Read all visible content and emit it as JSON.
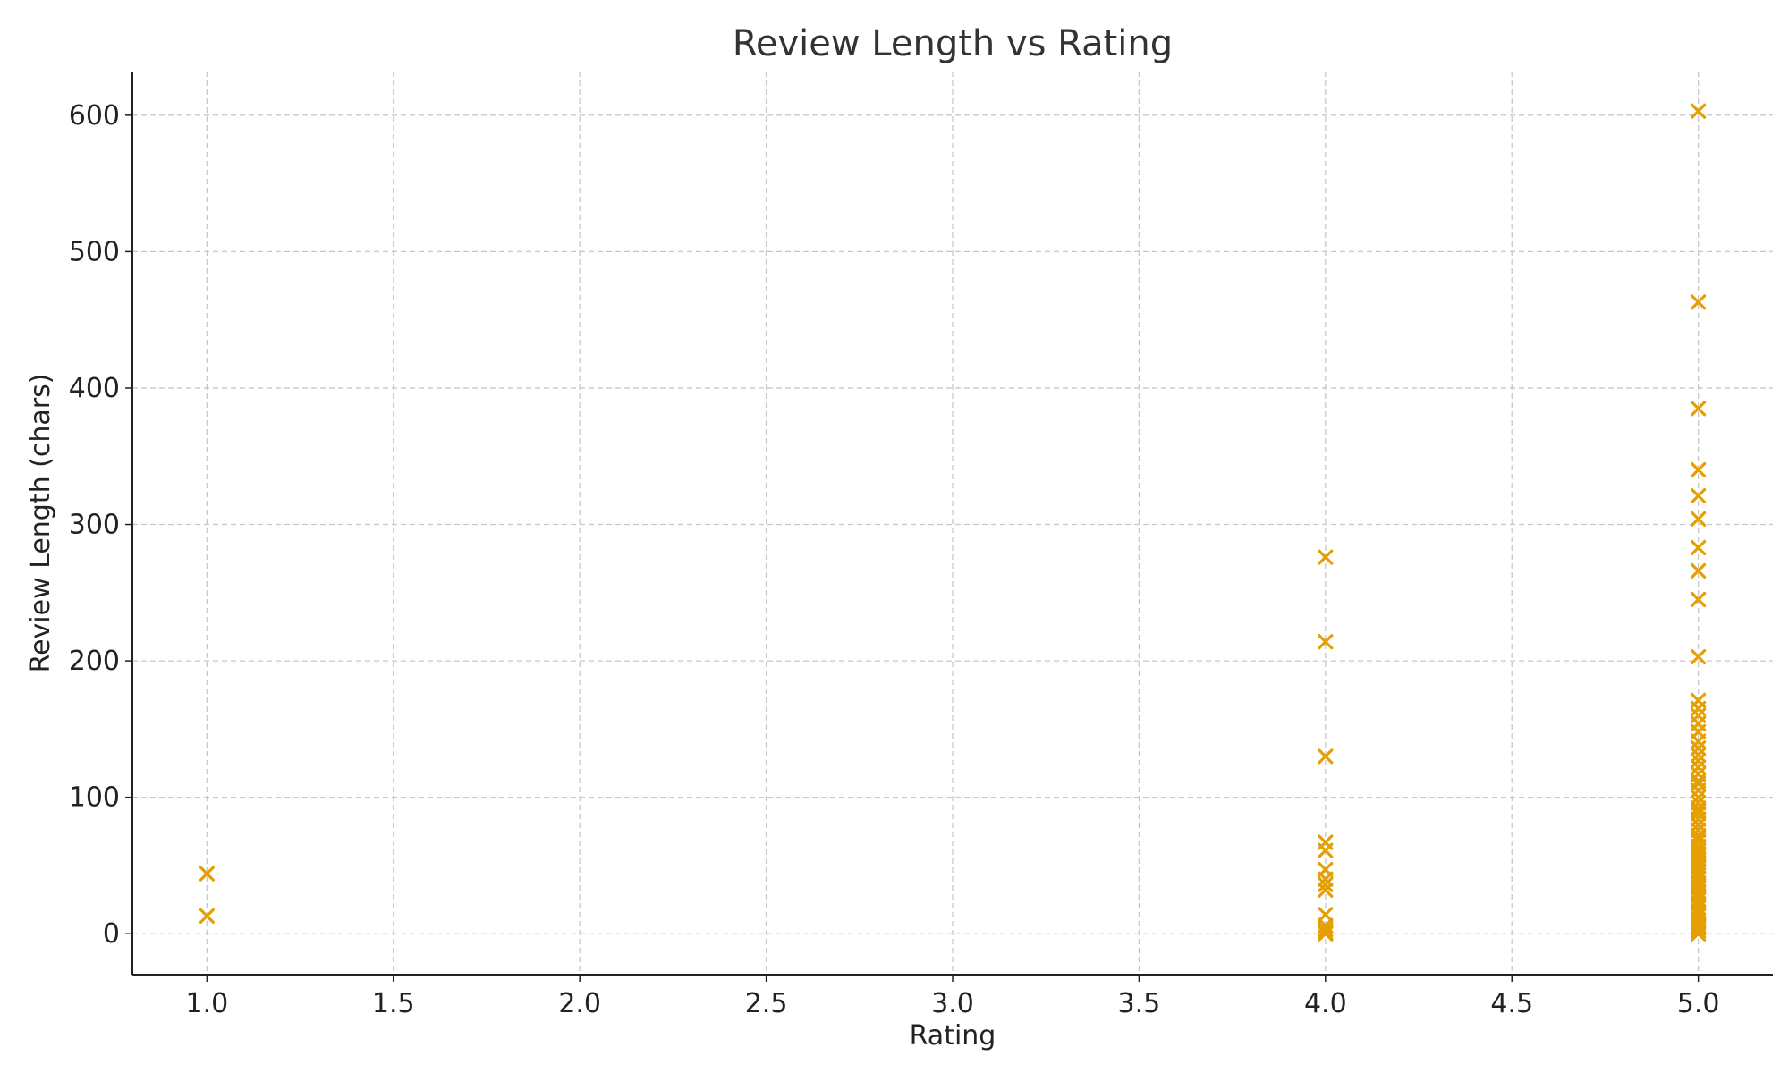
{
  "chart_data": {
    "type": "scatter",
    "title": "Review Length vs Rating",
    "xlabel": "Rating",
    "ylabel": "Review Length (chars)",
    "xlim": [
      0.8,
      5.2
    ],
    "ylim": [
      -30,
      632
    ],
    "xticks": [
      1.0,
      1.5,
      2.0,
      2.5,
      3.0,
      3.5,
      4.0,
      4.5,
      5.0
    ],
    "xtick_labels": [
      "1.0",
      "1.5",
      "2.0",
      "2.5",
      "3.0",
      "3.5",
      "4.0",
      "4.5",
      "5.0"
    ],
    "yticks": [
      0,
      100,
      200,
      300,
      400,
      500,
      600
    ],
    "ytick_labels": [
      "0",
      "100",
      "200",
      "300",
      "400",
      "500",
      "600"
    ],
    "grid": true,
    "marker": "x",
    "color": "#E69F00",
    "series": [
      {
        "x": [
          1,
          1,
          4,
          4,
          4,
          4,
          4,
          4,
          4,
          4,
          4,
          4,
          4,
          4,
          4,
          4,
          5,
          5,
          5,
          5,
          5,
          5,
          5,
          5,
          5,
          5,
          5,
          5,
          5,
          5,
          5,
          5,
          5,
          5,
          5,
          5,
          5,
          5,
          5,
          5,
          5,
          5,
          5,
          5,
          5,
          5,
          5,
          5,
          5,
          5,
          5,
          5,
          5,
          5,
          5,
          5,
          5,
          5,
          5,
          5,
          5,
          5,
          5,
          5,
          5,
          5,
          5,
          5,
          5,
          5,
          5,
          5,
          5,
          5,
          5,
          5,
          5,
          5,
          5,
          5,
          5,
          5,
          5,
          5
        ],
        "y": [
          44,
          13,
          276,
          214,
          130,
          67,
          61,
          47,
          40,
          36,
          32,
          14,
          6,
          3,
          1,
          0,
          603,
          463,
          385,
          340,
          321,
          304,
          283,
          266,
          245,
          203,
          171,
          165,
          160,
          154,
          148,
          141,
          136,
          131,
          127,
          122,
          117,
          112,
          105,
          100,
          96,
          92,
          88,
          84,
          80,
          76,
          72,
          68,
          64,
          61,
          58,
          55,
          52,
          49,
          46,
          43,
          40,
          37,
          34,
          31,
          28,
          25,
          22,
          19,
          16,
          13,
          10,
          8,
          6,
          4,
          2,
          0,
          30,
          50,
          70,
          90,
          110,
          57,
          63,
          45,
          35,
          25,
          15,
          5
        ]
      }
    ]
  }
}
